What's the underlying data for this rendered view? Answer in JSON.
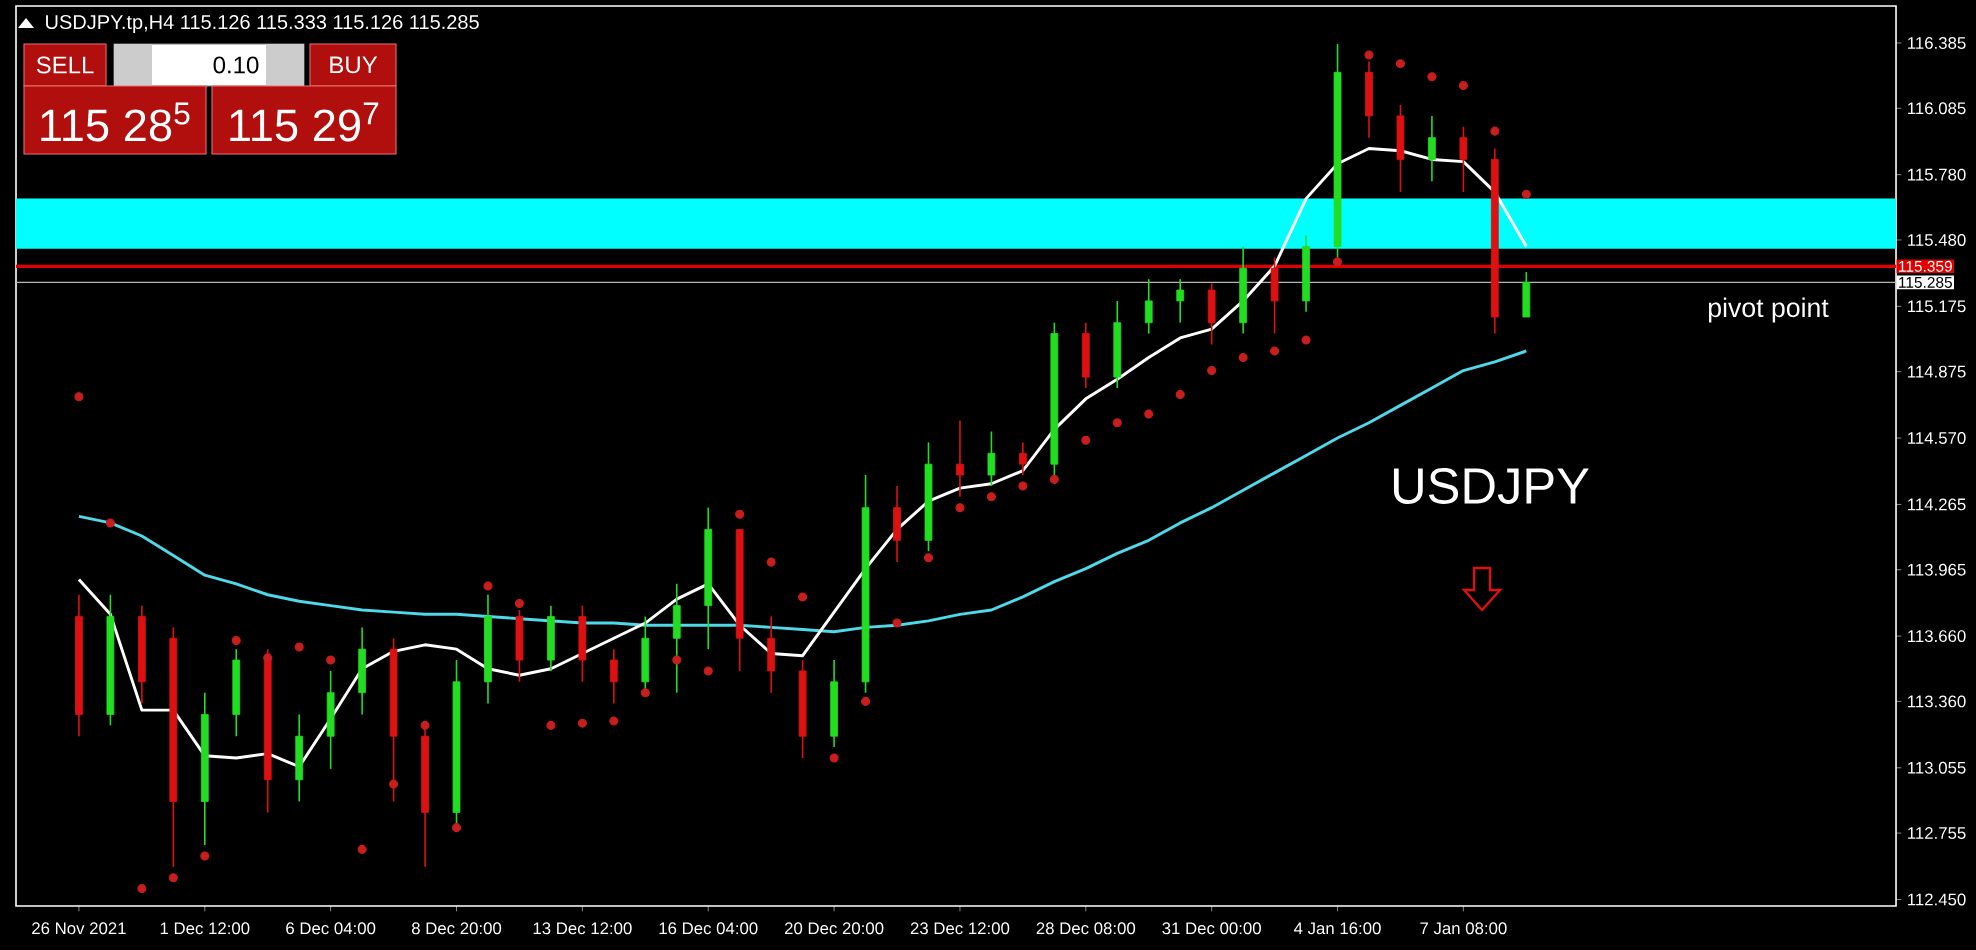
{
  "chart_data": {
    "type": "candlestick",
    "title": "USDJPY.tp,H4  115.126 115.333 115.126 115.285",
    "categories": [
      "26 Nov 2021",
      null,
      null,
      null,
      "1 Dec 12:00",
      null,
      null,
      null,
      "6 Dec 04:00",
      null,
      null,
      null,
      "8 Dec 20:00",
      null,
      null,
      null,
      "13 Dec 12:00",
      null,
      null,
      null,
      "16 Dec 04:00",
      null,
      null,
      null,
      "20 Dec 20:00",
      null,
      null,
      null,
      "23 Dec 12:00",
      null,
      null,
      null,
      "28 Dec 08:00",
      null,
      null,
      null,
      "31 Dec 00:00",
      null,
      null,
      null,
      "4 Jan 16:00",
      null,
      null,
      null,
      "7 Jan 08:00",
      null,
      null
    ],
    "ohlc": [
      [
        113.75,
        113.85,
        113.2,
        113.3
      ],
      [
        113.3,
        113.85,
        113.25,
        113.75
      ],
      [
        113.75,
        113.8,
        113.35,
        113.45
      ],
      [
        113.65,
        113.7,
        112.6,
        112.9
      ],
      [
        112.9,
        113.4,
        112.7,
        113.3
      ],
      [
        113.3,
        113.6,
        113.2,
        113.55
      ],
      [
        113.55,
        113.6,
        112.85,
        113.0
      ],
      [
        113.0,
        113.3,
        112.9,
        113.2
      ],
      [
        113.2,
        113.5,
        113.05,
        113.4
      ],
      [
        113.4,
        113.7,
        113.3,
        113.6
      ],
      [
        113.6,
        113.65,
        112.9,
        113.2
      ],
      [
        113.2,
        113.25,
        112.6,
        112.85
      ],
      [
        112.85,
        113.55,
        112.8,
        113.45
      ],
      [
        113.45,
        113.85,
        113.35,
        113.75
      ],
      [
        113.75,
        113.78,
        113.45,
        113.55
      ],
      [
        113.55,
        113.8,
        113.5,
        113.75
      ],
      [
        113.75,
        113.8,
        113.45,
        113.55
      ],
      [
        113.55,
        113.6,
        113.35,
        113.45
      ],
      [
        113.45,
        113.75,
        113.4,
        113.65
      ],
      [
        113.65,
        113.9,
        113.4,
        113.8
      ],
      [
        113.8,
        114.25,
        113.6,
        114.15
      ],
      [
        114.15,
        114.15,
        113.5,
        113.65
      ],
      [
        113.65,
        113.75,
        113.4,
        113.5
      ],
      [
        113.5,
        113.55,
        113.1,
        113.2
      ],
      [
        113.2,
        113.55,
        113.15,
        113.45
      ],
      [
        113.45,
        114.4,
        113.4,
        114.25
      ],
      [
        114.25,
        114.35,
        114.0,
        114.1
      ],
      [
        114.1,
        114.55,
        114.05,
        114.45
      ],
      [
        114.45,
        114.65,
        114.3,
        114.4
      ],
      [
        114.4,
        114.6,
        114.35,
        114.5
      ],
      [
        114.5,
        114.55,
        114.4,
        114.45
      ],
      [
        114.45,
        115.1,
        114.4,
        115.05
      ],
      [
        115.05,
        115.1,
        114.8,
        114.85
      ],
      [
        114.85,
        115.2,
        114.8,
        115.1
      ],
      [
        115.1,
        115.3,
        115.05,
        115.2
      ],
      [
        115.2,
        115.3,
        115.1,
        115.25
      ],
      [
        115.25,
        115.28,
        115.0,
        115.1
      ],
      [
        115.1,
        115.45,
        115.05,
        115.35
      ],
      [
        115.35,
        115.4,
        115.05,
        115.2
      ],
      [
        115.2,
        115.5,
        115.15,
        115.45
      ],
      [
        115.45,
        116.38,
        115.4,
        116.25
      ],
      [
        116.25,
        116.3,
        115.95,
        116.05
      ],
      [
        116.05,
        116.1,
        115.7,
        115.85
      ],
      [
        115.85,
        116.05,
        115.75,
        115.95
      ],
      [
        115.95,
        116.0,
        115.7,
        115.85
      ],
      [
        115.85,
        115.9,
        115.05,
        115.126
      ],
      [
        115.126,
        115.333,
        115.126,
        115.285
      ]
    ],
    "series": [
      {
        "type": "line",
        "color": "#4fd8e8",
        "values": [
          114.21,
          114.18,
          114.12,
          114.03,
          113.94,
          113.9,
          113.85,
          113.82,
          113.8,
          113.78,
          113.77,
          113.76,
          113.76,
          113.75,
          113.74,
          113.73,
          113.72,
          113.72,
          113.71,
          113.71,
          113.71,
          113.71,
          113.7,
          113.69,
          113.68,
          113.7,
          113.71,
          113.73,
          113.76,
          113.78,
          113.84,
          113.91,
          113.97,
          114.04,
          114.1,
          114.18,
          114.25,
          114.33,
          114.41,
          114.49,
          114.57,
          114.64,
          114.72,
          114.8,
          114.88,
          114.92,
          114.97
        ]
      },
      {
        "type": "line",
        "color": "#ffffff",
        "values": [
          113.92,
          113.76,
          113.32,
          113.32,
          113.11,
          113.1,
          113.12,
          113.06,
          113.28,
          113.51,
          113.59,
          113.62,
          113.6,
          113.51,
          113.48,
          113.51,
          113.58,
          113.65,
          113.72,
          113.83,
          113.9,
          113.71,
          113.58,
          113.57,
          113.77,
          113.97,
          114.15,
          114.28,
          114.34,
          114.36,
          114.42,
          114.61,
          114.75,
          114.84,
          114.94,
          115.03,
          115.07,
          115.2,
          115.36,
          115.67,
          115.83,
          115.9,
          115.89,
          115.85,
          115.84,
          115.7,
          115.45
        ]
      },
      {
        "type": "scatter",
        "marker": "circle",
        "color": "#c81e1e",
        "values": [
          114.76,
          114.18,
          112.5,
          112.55,
          112.65,
          113.64,
          113.56,
          113.61,
          113.55,
          112.68,
          112.98,
          113.25,
          112.78,
          113.89,
          113.81,
          113.25,
          113.26,
          113.27,
          113.4,
          113.55,
          113.5,
          114.22,
          114.0,
          113.84,
          113.1,
          113.36,
          113.72,
          114.02,
          114.25,
          114.3,
          114.35,
          114.38,
          114.56,
          114.64,
          114.68,
          114.77,
          114.88,
          114.94,
          114.97,
          115.02,
          115.38,
          116.33,
          116.29,
          116.23,
          116.19,
          115.98,
          115.69
        ]
      }
    ],
    "ylim": [
      112.42,
      116.555
    ],
    "yticks": [
      {
        "value": 112.45,
        "label": "112.450"
      },
      {
        "value": 112.755,
        "label": "112.755"
      },
      {
        "value": 113.055,
        "label": "113.055"
      },
      {
        "value": 113.36,
        "label": "113.360"
      },
      {
        "value": 113.66,
        "label": "113.660"
      },
      {
        "value": 113.965,
        "label": "113.965"
      },
      {
        "value": 114.265,
        "label": "114.265"
      },
      {
        "value": 114.57,
        "label": "114.570"
      },
      {
        "value": 114.875,
        "label": "114.875"
      },
      {
        "value": 115.175,
        "label": "115.175"
      },
      {
        "value": 115.48,
        "label": "115.480"
      },
      {
        "value": 115.78,
        "label": "115.780"
      },
      {
        "value": 116.085,
        "label": "116.085"
      },
      {
        "value": 116.385,
        "label": "116.385"
      }
    ],
    "bands": [
      {
        "axis": "y",
        "from": 115.44,
        "to": 115.67,
        "color": "#00ffff"
      }
    ],
    "ref_lines": [
      {
        "axis": "y",
        "value": 115.359,
        "label": "115.359",
        "color": "#e00000"
      },
      {
        "axis": "y",
        "value": 115.285,
        "label": "115.285",
        "color": "#b4b4b4"
      }
    ],
    "annotations": [
      "SELL",
      "0.10",
      "BUY",
      "115 28$^{5}$",
      "115 29$^{7}$",
      "pivot point",
      "USDJPY"
    ]
  }
}
